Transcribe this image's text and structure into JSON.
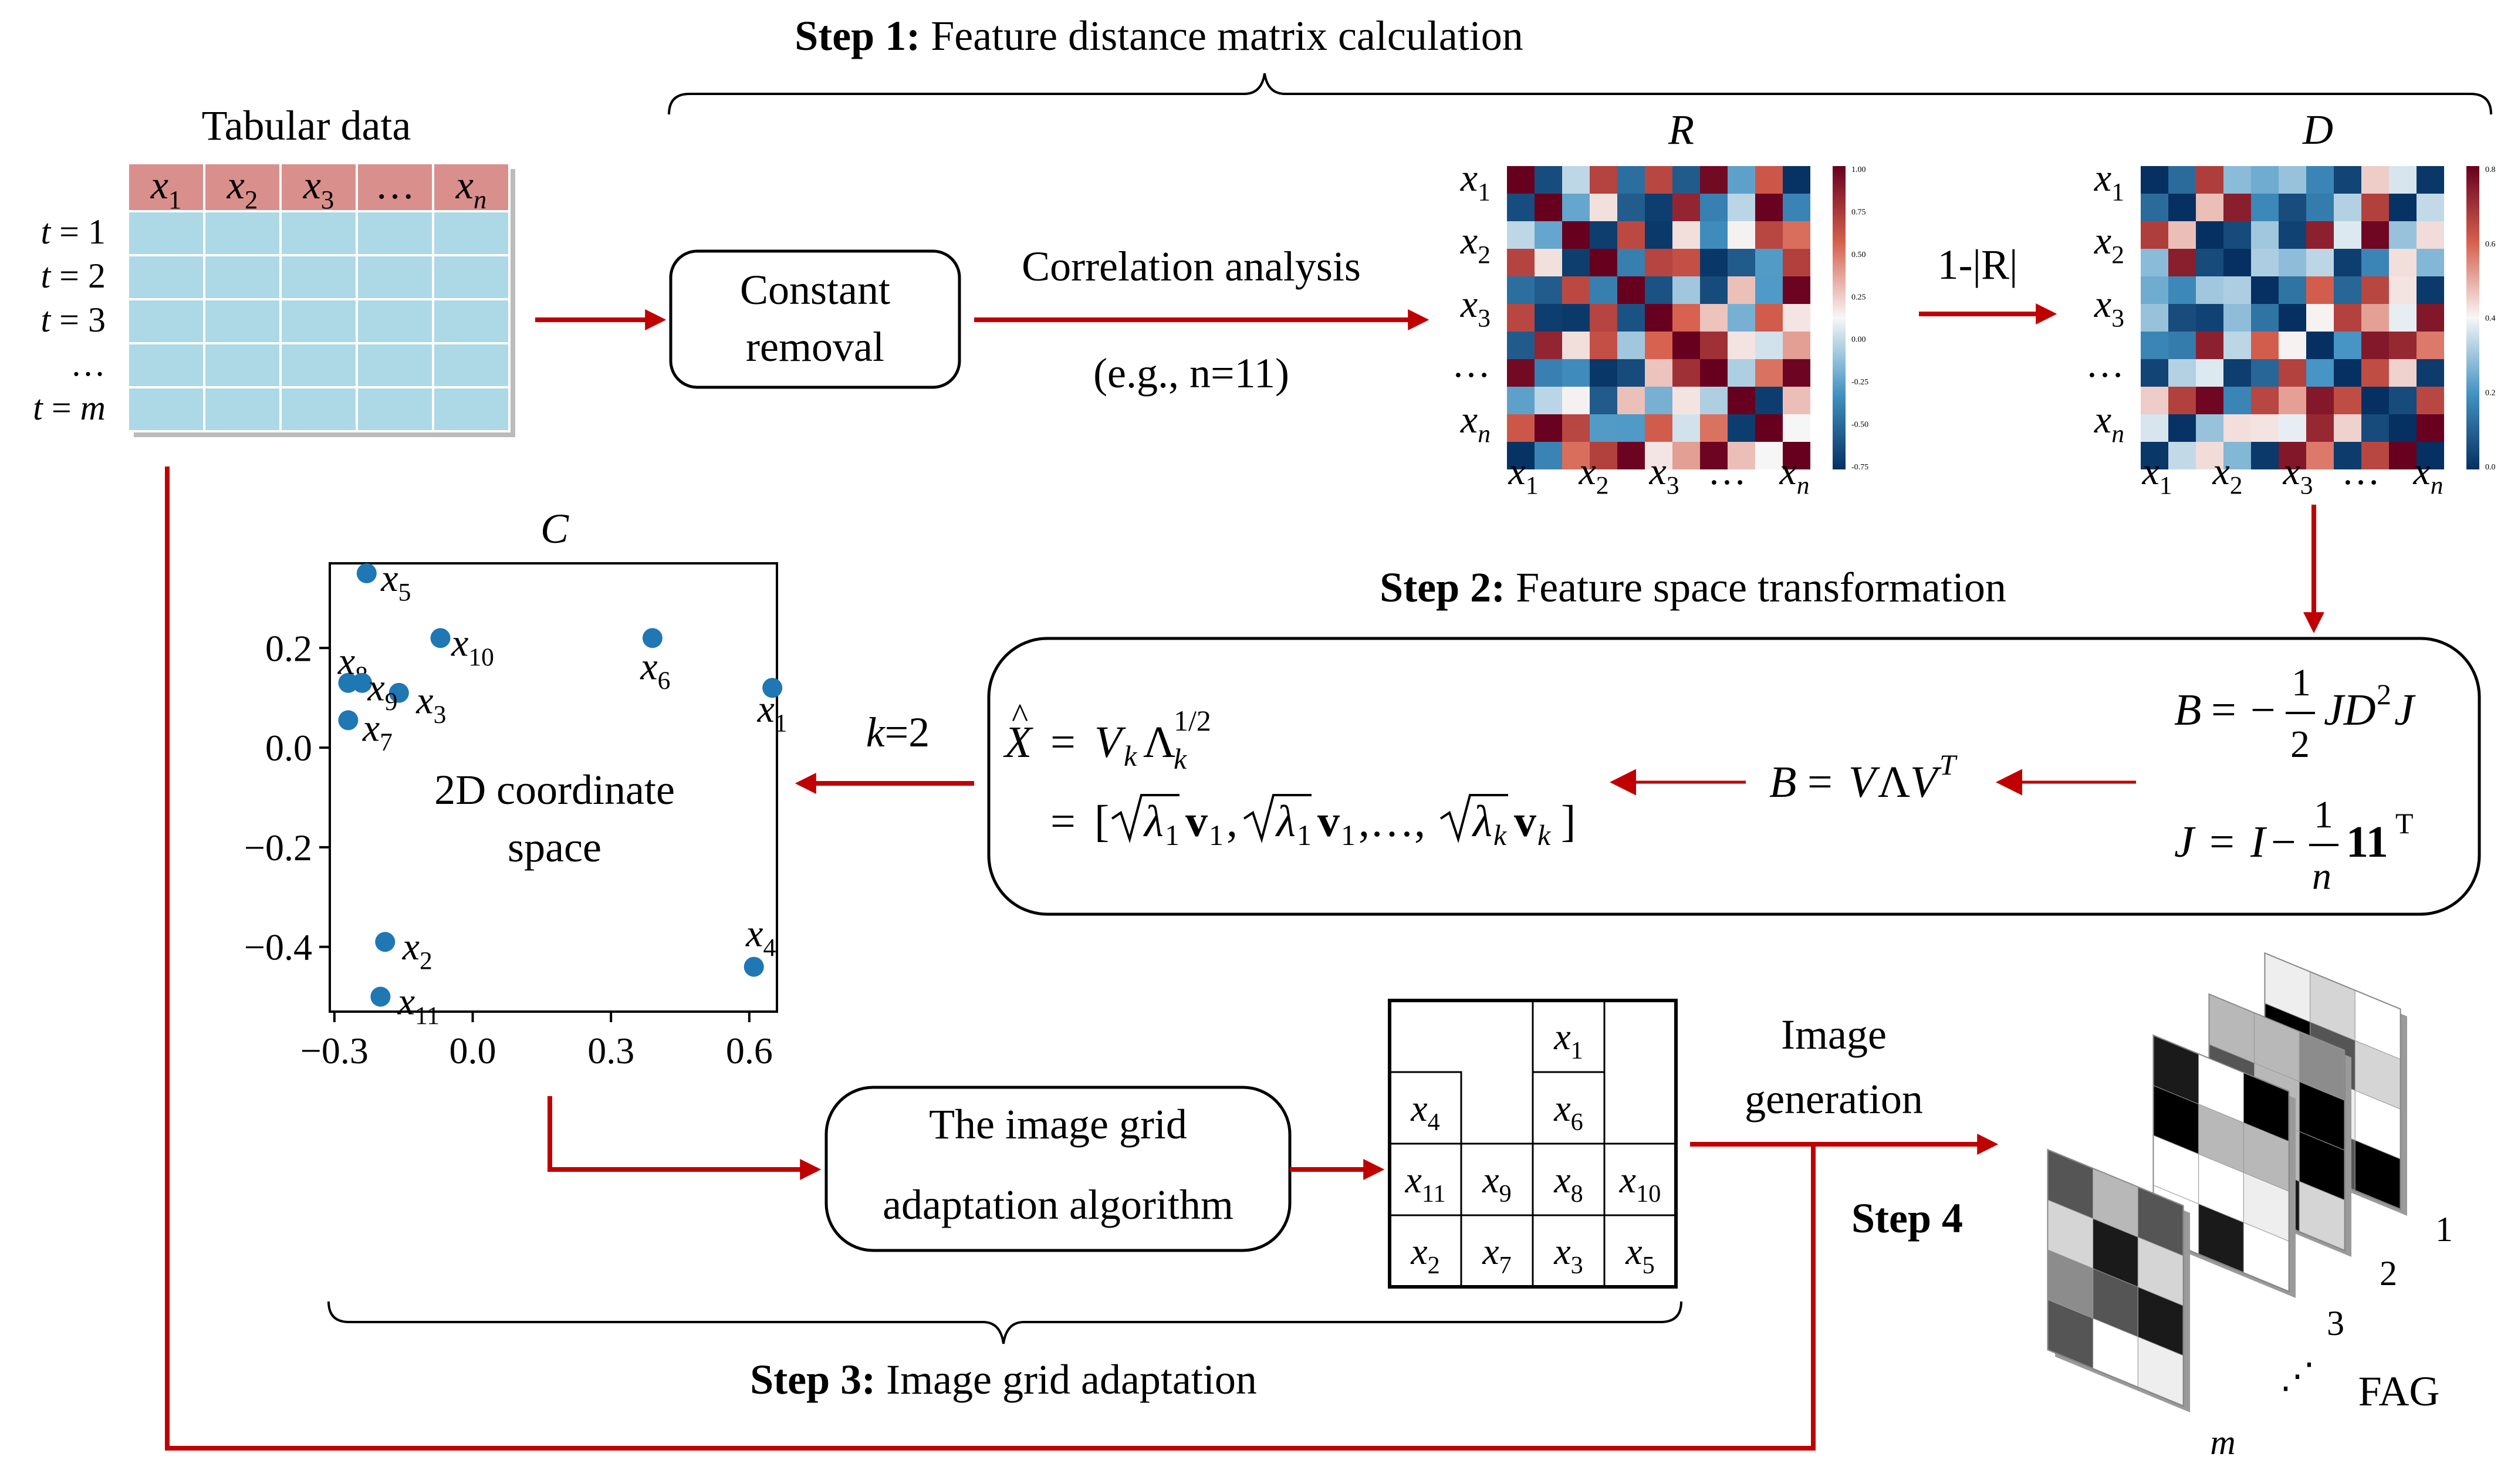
{
  "steps": {
    "step1": {
      "bold": "Step 1:",
      "text": " Feature distance matrix calculation"
    },
    "step2": {
      "bold": "Step 2:",
      "text": " Feature space transformation"
    },
    "step3": {
      "bold": "Step 3:",
      "text": " Image grid adaptation"
    },
    "step4": {
      "bold": "Step 4",
      "text": ""
    }
  },
  "table": {
    "title": "Tabular data",
    "headers": [
      "x1",
      "x2",
      "x3",
      "…",
      "xn"
    ],
    "rows": [
      "t = 1",
      "t = 2",
      "t = 3",
      "…",
      "t = m"
    ],
    "header_color": "#d98f8c",
    "cell_color": "#add8e6"
  },
  "boxes": {
    "constant_removal": [
      "Constant",
      "removal"
    ],
    "grid_algorithm": [
      "The image grid",
      "adaptation algorithm"
    ]
  },
  "labels": {
    "correlation": "Correlation analysis",
    "example": "(e.g., n=11)",
    "one_minus_abs_r": "1-|R|",
    "k2": "k=2",
    "image_generation": [
      "Image",
      "generation"
    ],
    "fag": "FAG"
  },
  "matrices": {
    "R": {
      "title": "R",
      "row_labels": [
        "x1",
        "x2",
        "x3",
        "…",
        "xn"
      ],
      "col_labels": [
        "x1",
        "x2",
        "x3",
        "…",
        "xn"
      ],
      "colorbar_ticks": [
        "1.00",
        "0.75",
        "0.50",
        "0.25",
        "0.00",
        "-0.25",
        "-0.50",
        "-0.75"
      ]
    },
    "D": {
      "title": "D",
      "row_labels": [
        "x1",
        "x2",
        "x3",
        "…",
        "xn"
      ],
      "col_labels": [
        "x1",
        "x2",
        "x3",
        "…",
        "xn"
      ],
      "colorbar_ticks": [
        "0.8",
        "0.6",
        "0.4",
        "0.2",
        "0.0"
      ]
    }
  },
  "formulas": {
    "xhat": "X̂ = V_k Λ_k^{1/2}",
    "expansion": "= [√λ1 v1, √λ1 v1, …, √λk vk]",
    "B_eig": "B = VΛV^T",
    "B_def": "B = −½ J D² J",
    "J_def": "J = I − (1/n) 11^T"
  },
  "chart_data": {
    "type": "scatter",
    "title": "C",
    "annotation": [
      "2D coordinate",
      "space"
    ],
    "x_ticks": [
      "−0.3",
      "0.0",
      "0.3",
      "0.6"
    ],
    "y_ticks": [
      "0.2",
      "0.0",
      "−0.2",
      "−0.4"
    ],
    "xlim": [
      -0.31,
      0.66
    ],
    "ylim": [
      -0.53,
      0.37
    ],
    "point_color": "#1f77b4",
    "points": [
      {
        "label": "x1",
        "x": 0.65,
        "y": 0.12
      },
      {
        "label": "x2",
        "x": -0.19,
        "y": -0.39
      },
      {
        "label": "x3",
        "x": -0.16,
        "y": 0.11
      },
      {
        "label": "x4",
        "x": 0.61,
        "y": -0.44
      },
      {
        "label": "x5",
        "x": -0.23,
        "y": 0.35
      },
      {
        "label": "x6",
        "x": 0.39,
        "y": 0.22
      },
      {
        "label": "x7",
        "x": -0.27,
        "y": 0.055
      },
      {
        "label": "x8",
        "x": -0.27,
        "y": 0.13
      },
      {
        "label": "x9",
        "x": -0.24,
        "y": 0.13
      },
      {
        "label": "x10",
        "x": -0.07,
        "y": 0.22
      },
      {
        "label": "x11",
        "x": -0.2,
        "y": -0.5
      }
    ]
  },
  "grid": {
    "cells": [
      {
        "label": "x1",
        "row": 0,
        "col": 2
      },
      {
        "label": "x4",
        "row": 1,
        "col": 0
      },
      {
        "label": "x6",
        "row": 1,
        "col": 2
      },
      {
        "label": "x11",
        "row": 2,
        "col": 0
      },
      {
        "label": "x9",
        "row": 2,
        "col": 1
      },
      {
        "label": "x8",
        "row": 2,
        "col": 2
      },
      {
        "label": "x10",
        "row": 2,
        "col": 3
      },
      {
        "label": "x2",
        "row": 3,
        "col": 0
      },
      {
        "label": "x7",
        "row": 3,
        "col": 1
      },
      {
        "label": "x3",
        "row": 3,
        "col": 2
      },
      {
        "label": "x5",
        "row": 3,
        "col": 3
      }
    ]
  },
  "stack": {
    "layer_labels": [
      "1",
      "2",
      "3",
      "⋰",
      "m"
    ]
  },
  "colors": {
    "arrow": "#c00000",
    "heat_pos": "#67001f",
    "heat_neg": "#053061"
  }
}
